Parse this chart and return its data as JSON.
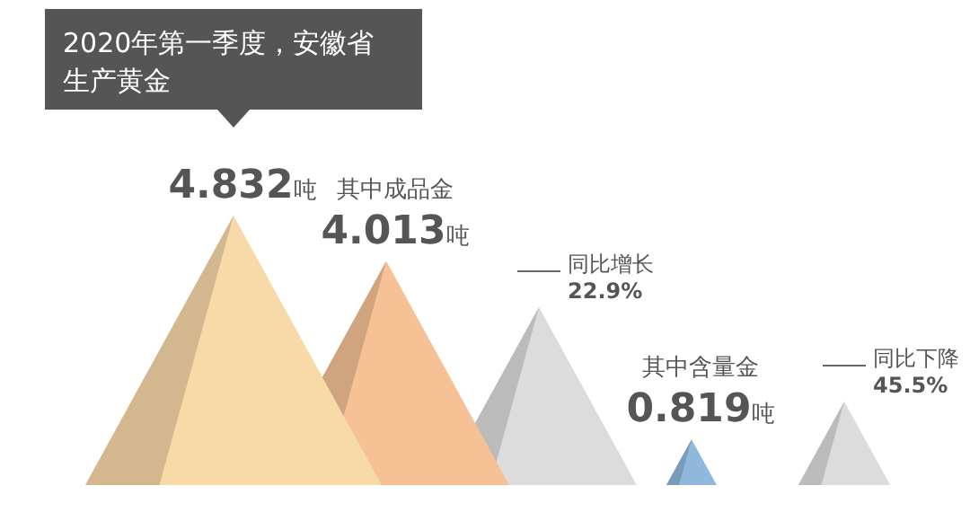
{
  "chart_data": {
    "type": "other",
    "title": "2020年第一季度，安徽省生产黄金",
    "values": [
      4.832,
      4.013,
      0.819
    ],
    "colors": [
      "#f8d9a8",
      "#f5c195",
      "#8fb8dc"
    ],
    "value_labels": [
      "4.832吨",
      "4.013吨",
      "0.819吨"
    ],
    "annotations": [
      "其中成品金",
      "同比增长\n22.9%",
      "其中含量金",
      "同比下降\n45.5%"
    ]
  }
}
